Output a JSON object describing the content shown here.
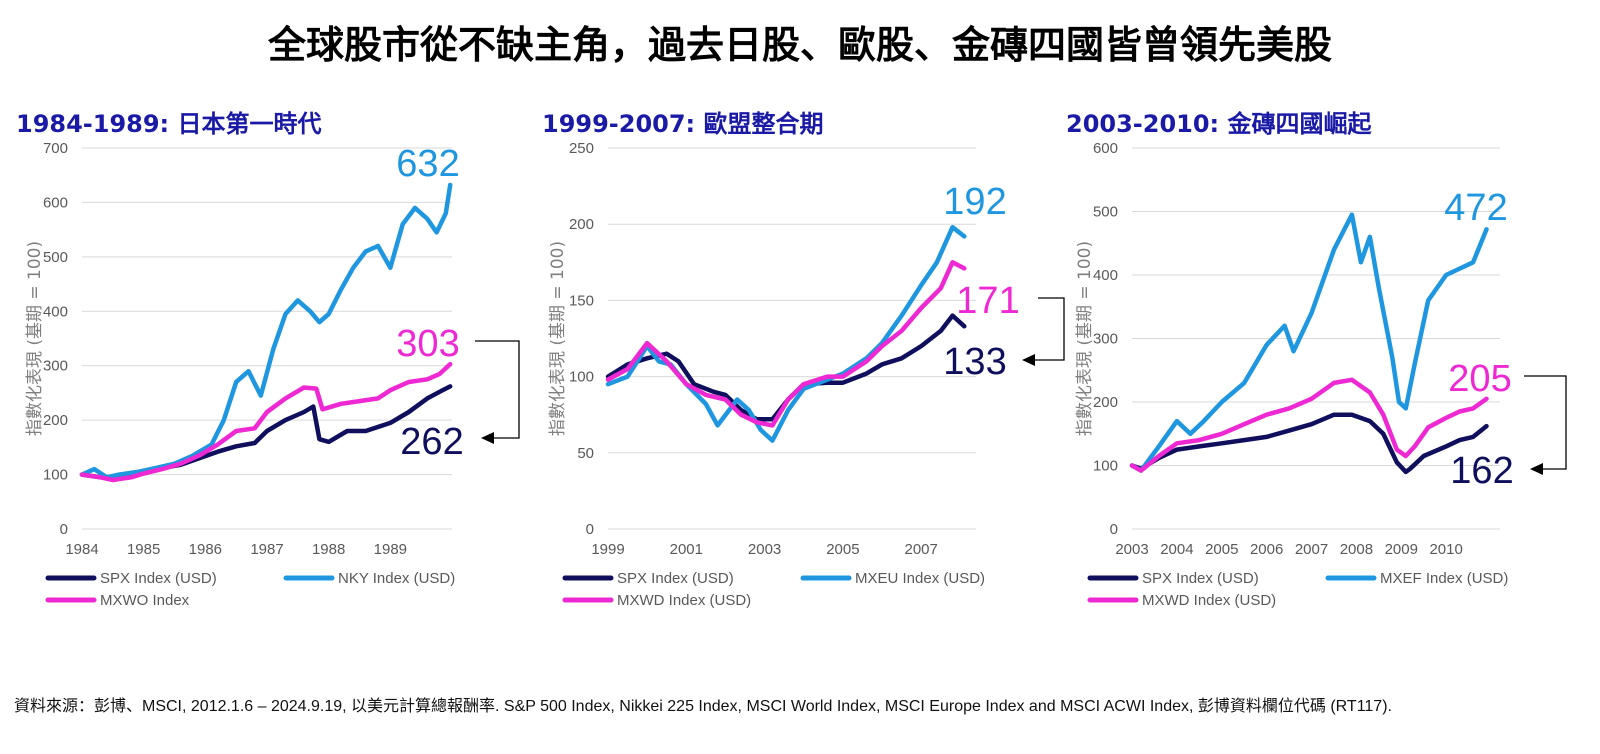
{
  "title": "全球股市從不缺主角，過去日股、歐股、金磚四國皆曾領先美股",
  "source": "資料來源：彭博、MSCI, 2012.1.6 – 2024.9.19, 以美元計算總報酬率. S&P 500 Index, Nikkei 225 Index, MSCI World Index, MSCI Europe Index and MSCI ACWI Index, 彭博資料欄位代碼 (RT117).",
  "colors": {
    "spx": "#0f0f5e",
    "intl": "#1e97e0",
    "world": "#ee28d2",
    "grid": "#d9d9d9",
    "title": "#1a1aa6"
  },
  "chart_data": [
    {
      "type": "line",
      "title": "1984-1989: 日本第一時代",
      "ylabel": "指數化表現 (基期 = 100)",
      "ylim": [
        0,
        700
      ],
      "yticks": [
        0,
        100,
        200,
        300,
        400,
        500,
        600,
        700
      ],
      "xlim": [
        1984,
        1990
      ],
      "xticks": [
        1984,
        1985,
        1986,
        1987,
        1988,
        1989
      ],
      "legend": [
        "SPX Index (USD)",
        "NKY Index (USD)",
        "MXWO Index"
      ],
      "annotations": [
        {
          "text": "632",
          "series": "intl"
        },
        {
          "text": "303",
          "series": "world"
        },
        {
          "text": "262",
          "series": "spx"
        }
      ],
      "series": [
        {
          "name": "SPX Index (USD)",
          "key": "spx",
          "x": [
            1984.0,
            1984.3,
            1984.5,
            1984.8,
            1985.0,
            1985.3,
            1985.6,
            1985.9,
            1986.2,
            1986.5,
            1986.8,
            1987.0,
            1987.3,
            1987.6,
            1987.75,
            1987.85,
            1988.0,
            1988.3,
            1988.6,
            1989.0,
            1989.3,
            1989.6,
            1989.85,
            1989.97
          ],
          "y": [
            100,
            95,
            92,
            98,
            105,
            112,
            118,
            130,
            142,
            152,
            158,
            180,
            200,
            215,
            225,
            165,
            160,
            180,
            180,
            195,
            215,
            240,
            255,
            262
          ]
        },
        {
          "name": "NKY Index (USD)",
          "key": "intl",
          "x": [
            1984.0,
            1984.2,
            1984.4,
            1984.6,
            1984.9,
            1985.2,
            1985.5,
            1985.8,
            1986.1,
            1986.3,
            1986.5,
            1986.7,
            1986.9,
            1987.1,
            1987.3,
            1987.5,
            1987.7,
            1987.85,
            1988.0,
            1988.2,
            1988.4,
            1988.6,
            1988.8,
            1989.0,
            1989.2,
            1989.4,
            1989.6,
            1989.75,
            1989.9,
            1989.97
          ],
          "y": [
            100,
            110,
            95,
            100,
            105,
            112,
            120,
            135,
            155,
            200,
            270,
            290,
            245,
            330,
            395,
            420,
            400,
            380,
            395,
            440,
            480,
            510,
            520,
            480,
            560,
            590,
            570,
            545,
            580,
            632
          ]
        },
        {
          "name": "MXWO Index",
          "key": "world",
          "x": [
            1984.0,
            1984.3,
            1984.5,
            1984.8,
            1985.0,
            1985.3,
            1985.6,
            1985.9,
            1986.2,
            1986.5,
            1986.8,
            1987.0,
            1987.3,
            1987.6,
            1987.8,
            1987.9,
            1988.2,
            1988.5,
            1988.8,
            1989.0,
            1989.3,
            1989.6,
            1989.8,
            1989.97
          ],
          "y": [
            100,
            95,
            90,
            95,
            102,
            110,
            120,
            135,
            155,
            180,
            185,
            215,
            240,
            260,
            258,
            220,
            230,
            235,
            240,
            255,
            270,
            275,
            285,
            303
          ]
        }
      ]
    },
    {
      "type": "line",
      "title": "1999-2007: 歐盟整合期",
      "ylabel": "指數化表現 (基期 = 100)",
      "ylim": [
        0,
        250
      ],
      "yticks": [
        0,
        50,
        100,
        150,
        200,
        250
      ],
      "xlim": [
        1999,
        2008.4
      ],
      "xticks": [
        1999,
        2001,
        2003,
        2005,
        2007
      ],
      "legend": [
        "SPX Index (USD)",
        "MXEU Index (USD)",
        "MXWD Index (USD)"
      ],
      "annotations": [
        {
          "text": "192",
          "series": "intl"
        },
        {
          "text": "171",
          "series": "world"
        },
        {
          "text": "133",
          "series": "spx"
        }
      ],
      "series": [
        {
          "name": "SPX Index (USD)",
          "key": "spx",
          "x": [
            1999.0,
            1999.5,
            2000.0,
            2000.5,
            2000.8,
            2001.2,
            2001.7,
            2002.0,
            2002.4,
            2002.8,
            2003.2,
            2003.6,
            2004.0,
            2004.6,
            2005.0,
            2005.6,
            2006.0,
            2006.5,
            2007.0,
            2007.5,
            2007.8,
            2008.1
          ],
          "y": [
            100,
            108,
            112,
            115,
            110,
            95,
            90,
            88,
            78,
            72,
            72,
            85,
            95,
            96,
            96,
            102,
            108,
            112,
            120,
            130,
            140,
            133
          ]
        },
        {
          "name": "MXEU Index (USD)",
          "key": "intl",
          "x": [
            1999.0,
            1999.5,
            2000.0,
            2000.3,
            2000.6,
            2001.0,
            2001.5,
            2001.8,
            2002.3,
            2002.6,
            2002.9,
            2003.2,
            2003.6,
            2004.0,
            2004.6,
            2005.0,
            2005.6,
            2006.0,
            2006.5,
            2007.0,
            2007.4,
            2007.8,
            2008.1
          ],
          "y": [
            95,
            100,
            120,
            110,
            108,
            95,
            82,
            68,
            85,
            78,
            65,
            58,
            78,
            92,
            98,
            102,
            112,
            122,
            140,
            160,
            175,
            198,
            192
          ]
        },
        {
          "name": "MXWD Index (USD)",
          "key": "world",
          "x": [
            1999.0,
            1999.5,
            2000.0,
            2000.5,
            2001.0,
            2001.5,
            2002.0,
            2002.4,
            2002.8,
            2003.2,
            2003.6,
            2004.0,
            2004.6,
            2005.0,
            2005.6,
            2006.0,
            2006.5,
            2007.0,
            2007.5,
            2007.8,
            2008.1
          ],
          "y": [
            98,
            105,
            122,
            110,
            95,
            88,
            85,
            75,
            70,
            68,
            85,
            95,
            100,
            100,
            110,
            120,
            130,
            145,
            158,
            175,
            171
          ]
        }
      ]
    },
    {
      "type": "line",
      "title": "2003-2010: 金磚四國崛起",
      "ylabel": "指數化表現 (基期 = 100)",
      "ylim": [
        0,
        600
      ],
      "yticks": [
        0,
        100,
        200,
        300,
        400,
        500,
        600
      ],
      "xlim": [
        2003,
        2011.2
      ],
      "xticks": [
        2003,
        2004,
        2005,
        2006,
        2007,
        2008,
        2009,
        2010
      ],
      "legend": [
        "SPX Index (USD)",
        "MXEF Index (USD)",
        "MXWD Index (USD)"
      ],
      "annotations": [
        {
          "text": "472",
          "series": "intl"
        },
        {
          "text": "205",
          "series": "world"
        },
        {
          "text": "162",
          "series": "spx"
        }
      ],
      "series": [
        {
          "name": "SPX Index (USD)",
          "key": "spx",
          "x": [
            2003.0,
            2003.2,
            2003.6,
            2004.0,
            2004.5,
            2005.0,
            2005.5,
            2006.0,
            2006.5,
            2007.0,
            2007.5,
            2007.9,
            2008.3,
            2008.6,
            2008.9,
            2009.1,
            2009.2,
            2009.5,
            2010.0,
            2010.3,
            2010.6,
            2010.9
          ],
          "y": [
            100,
            95,
            112,
            125,
            130,
            135,
            140,
            145,
            155,
            165,
            180,
            180,
            170,
            150,
            105,
            90,
            95,
            115,
            130,
            140,
            145,
            162
          ]
        },
        {
          "name": "MXEF Index (USD)",
          "key": "intl",
          "x": [
            2003.0,
            2003.2,
            2003.6,
            2004.0,
            2004.3,
            2004.6,
            2005.0,
            2005.5,
            2006.0,
            2006.4,
            2006.6,
            2007.0,
            2007.5,
            2007.9,
            2008.1,
            2008.3,
            2008.5,
            2008.8,
            2008.95,
            2009.1,
            2009.3,
            2009.6,
            2010.0,
            2010.3,
            2010.6,
            2010.9
          ],
          "y": [
            100,
            92,
            130,
            170,
            150,
            170,
            200,
            230,
            290,
            320,
            280,
            340,
            440,
            495,
            420,
            460,
            380,
            270,
            200,
            190,
            260,
            360,
            400,
            410,
            420,
            472
          ]
        },
        {
          "name": "MXWD Index (USD)",
          "key": "world",
          "x": [
            2003.0,
            2003.2,
            2003.6,
            2004.0,
            2004.5,
            2005.0,
            2005.5,
            2006.0,
            2006.5,
            2007.0,
            2007.5,
            2007.9,
            2008.3,
            2008.6,
            2008.9,
            2009.1,
            2009.3,
            2009.6,
            2010.0,
            2010.3,
            2010.6,
            2010.9
          ],
          "y": [
            100,
            92,
            115,
            135,
            140,
            150,
            165,
            180,
            190,
            205,
            230,
            235,
            215,
            180,
            125,
            115,
            130,
            160,
            175,
            185,
            190,
            205
          ]
        }
      ]
    }
  ]
}
